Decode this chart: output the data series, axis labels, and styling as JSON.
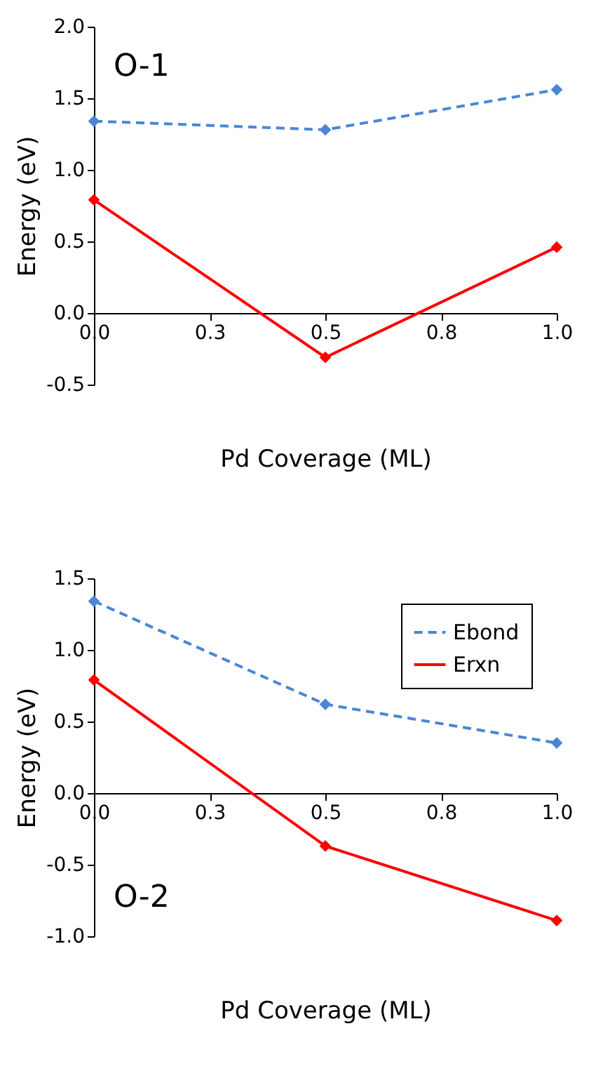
{
  "chart_data": [
    {
      "type": "line",
      "xlabel": "Pd Coverage (ML)",
      "ylabel": "Energy (eV)",
      "annotations": [
        "O-1"
      ],
      "x": [
        0,
        0.5,
        1.0
      ],
      "series": [
        {
          "color": "#4a86d4",
          "line_style": "dashed",
          "values": [
            1.34,
            1.28,
            1.56
          ]
        },
        {
          "color": "#ff0000",
          "line_style": "solid",
          "values": [
            0.79,
            -0.31,
            0.46
          ]
        }
      ],
      "xlim": [
        0,
        1.0
      ],
      "xticks": [
        {
          "value": 0,
          "label": "0.0"
        },
        {
          "value": 0.25,
          "label": "0.3"
        },
        {
          "value": 0.5,
          "label": "0.5"
        },
        {
          "value": 0.75,
          "label": "0.8"
        },
        {
          "value": 1.0,
          "label": "1.0"
        }
      ],
      "ylim": [
        -0.5,
        2.0
      ],
      "yticks": [
        {
          "value": -0.5,
          "label": "-0.5"
        },
        {
          "value": 0,
          "label": "0.0"
        },
        {
          "value": 0.5,
          "label": "0.5"
        },
        {
          "value": 1.0,
          "label": "1.0"
        },
        {
          "value": 1.5,
          "label": "1.5"
        },
        {
          "value": 2.0,
          "label": "2.0"
        }
      ],
      "marker": "diamond",
      "grid": false,
      "legend": false
    },
    {
      "type": "line",
      "xlabel": "Pd Coverage (ML)",
      "ylabel": "Energy (eV)",
      "annotations": [
        "O-2"
      ],
      "x": [
        0,
        0.5,
        1.0
      ],
      "series": [
        {
          "name": "Ebond",
          "color": "#4a86d4",
          "line_style": "dashed",
          "values": [
            1.34,
            0.62,
            0.35
          ]
        },
        {
          "name": "Erxn",
          "color": "#ff0000",
          "line_style": "solid",
          "values": [
            0.79,
            -0.37,
            -0.89
          ]
        }
      ],
      "xlim": [
        0,
        1.0
      ],
      "xticks": [
        {
          "value": 0,
          "label": "0.0"
        },
        {
          "value": 0.25,
          "label": "0.3"
        },
        {
          "value": 0.5,
          "label": "0.5"
        },
        {
          "value": 0.75,
          "label": "0.8"
        },
        {
          "value": 1.0,
          "label": "1.0"
        }
      ],
      "ylim": [
        -1.0,
        1.5
      ],
      "yticks": [
        {
          "value": -1.0,
          "label": "-1.0"
        },
        {
          "value": -0.5,
          "label": "-0.5"
        },
        {
          "value": 0,
          "label": "0.0"
        },
        {
          "value": 0.5,
          "label": "0.5"
        },
        {
          "value": 1.0,
          "label": "1.0"
        },
        {
          "value": 1.5,
          "label": "1.5"
        }
      ],
      "marker": "diamond",
      "grid": false,
      "legend": "top right"
    }
  ]
}
